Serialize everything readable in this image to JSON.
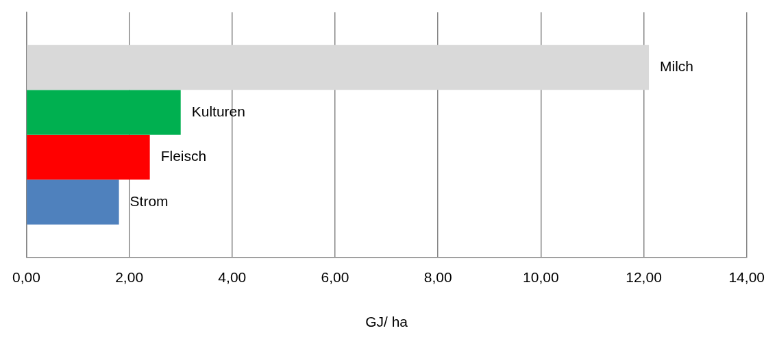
{
  "chart_data": {
    "type": "bar",
    "orientation": "horizontal",
    "categories": [
      null
    ],
    "series": [
      {
        "name": "Milch",
        "color": "#d9d9d9",
        "values": [
          12.1
        ]
      },
      {
        "name": "Kulturen",
        "color": "#00b050",
        "values": [
          3.0
        ]
      },
      {
        "name": "Fleisch",
        "color": "#ff0000",
        "values": [
          2.4
        ]
      },
      {
        "name": "Strom",
        "color": "#4f81bd",
        "values": [
          1.8
        ]
      }
    ],
    "xlim": [
      0,
      14
    ],
    "xticks": [
      {
        "value": 0,
        "label": "0,00"
      },
      {
        "value": 2,
        "label": "2,00"
      },
      {
        "value": 4,
        "label": "4,00"
      },
      {
        "value": 6,
        "label": "6,00"
      },
      {
        "value": 8,
        "label": "8,00"
      },
      {
        "value": 10,
        "label": "10,00"
      },
      {
        "value": 12,
        "label": "12,00"
      },
      {
        "value": 14,
        "label": "14,00"
      }
    ],
    "xlabel": "GJ/ ha",
    "grid": "x",
    "legend": false
  }
}
